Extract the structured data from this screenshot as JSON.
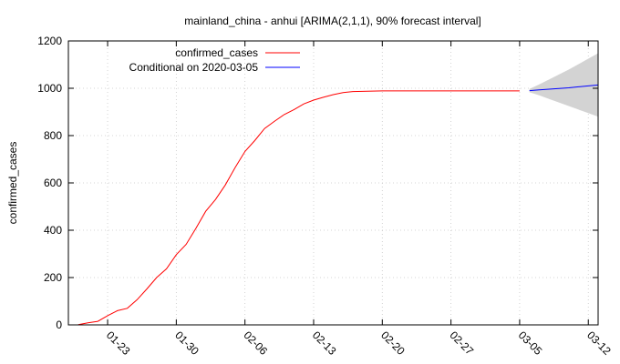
{
  "chart_data": {
    "type": "line",
    "title": "mainland_china - anhui [ARIMA(2,1,1), 90% forecast interval]",
    "xlabel": "",
    "ylabel": "confirmed_cases",
    "ylim": [
      0,
      1200
    ],
    "yticks": [
      0,
      200,
      400,
      600,
      800,
      1000,
      1200
    ],
    "xlim": [
      "2020-01-19",
      "2020-03-13"
    ],
    "xtick_dates": [
      "2020-01-23",
      "2020-01-30",
      "2020-02-06",
      "2020-02-13",
      "2020-02-20",
      "2020-02-27",
      "2020-03-05",
      "2020-03-12"
    ],
    "xtick_labels": [
      "01-23",
      "01-30",
      "02-06",
      "02-13",
      "02-20",
      "02-27",
      "03-05",
      "03-12"
    ],
    "grid": true,
    "legend_position": "top-left",
    "series": [
      {
        "name": "confirmed_cases",
        "color": "#ff0000",
        "x": [
          "2020-01-20",
          "2020-01-21",
          "2020-01-22",
          "2020-01-23",
          "2020-01-24",
          "2020-01-25",
          "2020-01-26",
          "2020-01-27",
          "2020-01-28",
          "2020-01-29",
          "2020-01-30",
          "2020-01-31",
          "2020-02-01",
          "2020-02-02",
          "2020-02-03",
          "2020-02-04",
          "2020-02-05",
          "2020-02-06",
          "2020-02-07",
          "2020-02-08",
          "2020-02-09",
          "2020-02-10",
          "2020-02-11",
          "2020-02-12",
          "2020-02-13",
          "2020-02-14",
          "2020-02-15",
          "2020-02-16",
          "2020-02-17",
          "2020-02-18",
          "2020-02-19",
          "2020-02-20",
          "2020-02-21",
          "2020-02-22",
          "2020-02-23",
          "2020-02-24",
          "2020-02-25",
          "2020-02-26",
          "2020-02-27",
          "2020-02-28",
          "2020-02-29",
          "2020-03-01",
          "2020-03-02",
          "2020-03-03",
          "2020-03-04",
          "2020-03-05"
        ],
        "y": [
          1,
          9,
          15,
          39,
          60,
          70,
          106,
          152,
          200,
          237,
          297,
          340,
          408,
          480,
          530,
          591,
          665,
          733,
          779,
          830,
          860,
          889,
          910,
          934,
          950,
          962,
          973,
          982,
          986,
          987,
          988,
          989,
          989,
          989,
          989,
          989,
          989,
          989,
          989,
          989,
          989,
          989,
          989,
          989,
          989,
          989
        ]
      },
      {
        "name": "Conditional on 2020-03-05",
        "color": "#0000ff",
        "x": [
          "2020-03-06",
          "2020-03-07",
          "2020-03-08",
          "2020-03-09",
          "2020-03-10",
          "2020-03-11",
          "2020-03-12",
          "2020-03-13"
        ],
        "y": [
          990,
          993,
          996,
          999,
          1002,
          1006,
          1010,
          1014
        ],
        "lower": [
          983,
          970,
          955,
          940,
          925,
          910,
          895,
          880
        ],
        "upper": [
          997,
          1016,
          1037,
          1058,
          1079,
          1102,
          1125,
          1148
        ]
      }
    ],
    "interval_color": "#d3d3d3"
  }
}
